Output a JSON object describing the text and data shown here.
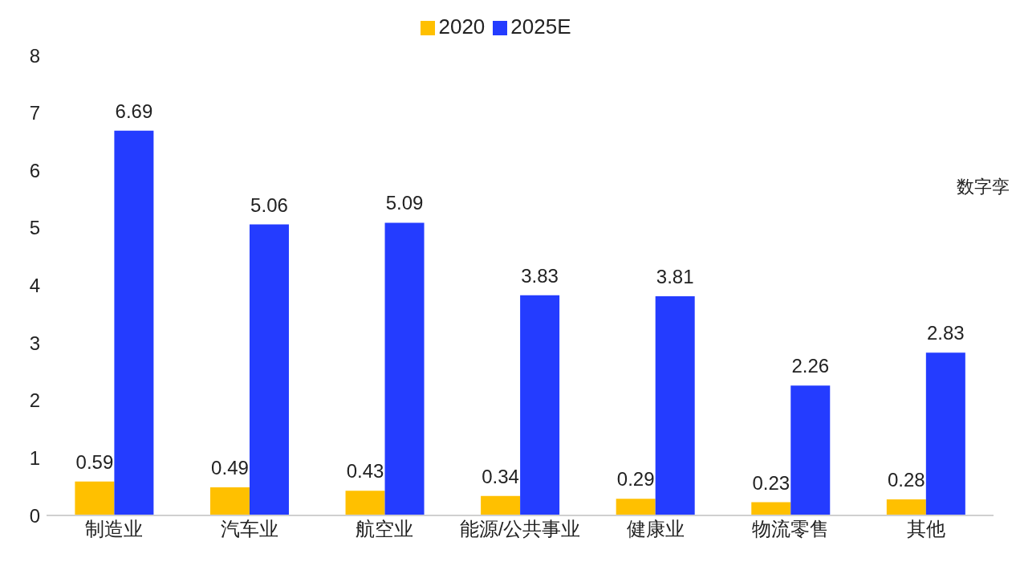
{
  "chart_data": {
    "type": "bar",
    "categories": [
      "制造业",
      "汽车业",
      "航空业",
      "能源/公共事业",
      "健康业",
      "物流零售",
      "其他"
    ],
    "series": [
      {
        "name": "2020",
        "color": "#ffc000",
        "values": [
          0.59,
          0.49,
          0.43,
          0.34,
          0.29,
          0.23,
          0.28
        ]
      },
      {
        "name": "2025E",
        "color": "#243cff",
        "values": [
          6.69,
          5.06,
          5.09,
          3.83,
          3.81,
          2.26,
          2.83
        ]
      }
    ],
    "ylim": [
      0,
      8
    ],
    "yticks": [
      0,
      1,
      2,
      3,
      4,
      5,
      6,
      7,
      8
    ],
    "data_labels": true,
    "legend": "top",
    "grid": false,
    "annotations": [
      "数字孪"
    ]
  }
}
